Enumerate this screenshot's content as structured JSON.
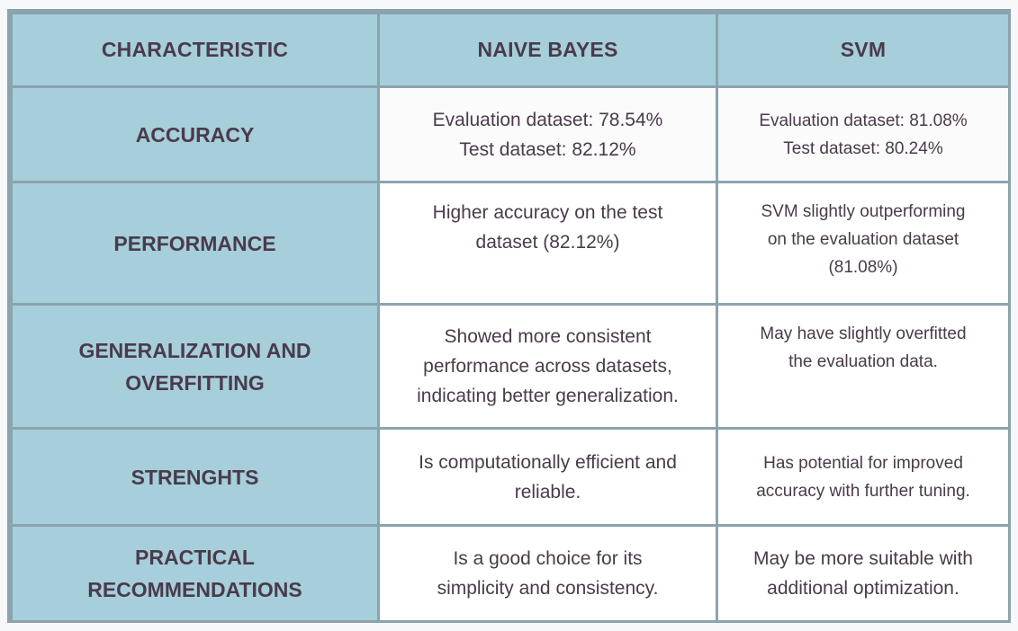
{
  "headers": {
    "characteristic": "CHARACTERISTIC",
    "naive_bayes": "NAIVE BAYES",
    "svm": "SVM"
  },
  "rows": [
    {
      "label_lines": [
        "ACCURACY"
      ],
      "naive_bayes_lines": [
        "Evaluation dataset: 78.54%",
        "Test dataset:  82.12%"
      ],
      "svm_lines": [
        "Evaluation dataset: 81.08%",
        "Test dataset: 80.24%"
      ]
    },
    {
      "label_lines": [
        "PERFORMANCE"
      ],
      "naive_bayes_lines": [
        "Higher accuracy on the test",
        "dataset (82.12%)"
      ],
      "svm_lines": [
        "SVM slightly outperforming",
        "on the evaluation dataset",
        "(81.08%)"
      ]
    },
    {
      "label_lines": [
        "GENERALIZATION AND",
        "OVERFITTING"
      ],
      "naive_bayes_lines": [
        "Showed more consistent",
        "performance across datasets,",
        "indicating better generalization."
      ],
      "svm_lines": [
        "May have slightly overfitted",
        "the evaluation data."
      ]
    },
    {
      "label_lines": [
        "STRENGHTS"
      ],
      "naive_bayes_lines": [
        "Is computationally efficient and",
        "reliable."
      ],
      "svm_lines": [
        "Has potential for improved",
        "accuracy with further tuning."
      ]
    },
    {
      "label_lines": [
        "PRACTICAL",
        "RECOMMENDATIONS"
      ],
      "naive_bayes_lines": [
        "Is a good choice for its",
        "simplicity and consistency."
      ],
      "svm_lines": [
        "May be more suitable with",
        "additional optimization."
      ]
    }
  ]
}
